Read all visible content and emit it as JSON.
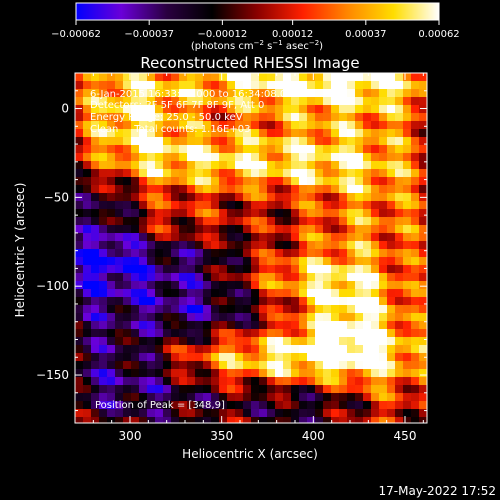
{
  "chart_data": {
    "type": "heatmap",
    "title": "Reconstructed RHESSI Image",
    "xlabel": "Heliocentric X (arcsec)",
    "ylabel": "Heliocentric Y (arcsec)",
    "xlim": [
      270,
      462
    ],
    "ylim": [
      -177,
      20
    ],
    "xticks": [
      300,
      350,
      400,
      450
    ],
    "xtick_labels": [
      "300",
      "350",
      "400",
      "450"
    ],
    "yticks": [
      0,
      -50,
      -100,
      -150
    ],
    "ytick_labels": [
      "0",
      "−50",
      "−100",
      "−150"
    ],
    "colorbar": {
      "range": [
        -0.00062,
        0.00062
      ],
      "tick_values": [
        -0.00062,
        -0.00037,
        -0.00012,
        0.00012,
        0.00037,
        0.00062
      ],
      "tick_labels": [
        "−0.00062",
        "−0.00037",
        "−0.00012",
        "0.00012",
        "0.00037",
        "0.00062"
      ],
      "units_text": "(photons cm",
      "units_exp1": "−2",
      "units_mid1": " s",
      "units_exp2": "−1",
      "units_mid2": " asec",
      "units_exp3": "−2",
      "units_end": ")",
      "colors": [
        "#0000ff",
        "#6a00d8",
        "#2a0040",
        "#000000",
        "#8b0000",
        "#ff2000",
        "#ff8800",
        "#ffdd00",
        "#ffffff"
      ]
    },
    "peak": {
      "x": 348,
      "y": 9
    },
    "blobs": [
      {
        "x": 395,
        "y": 15,
        "sx": 60,
        "sy": 12,
        "a": 0.00058
      },
      {
        "x": 300,
        "y": -5,
        "sx": 20,
        "sy": 20,
        "a": 0.00045
      },
      {
        "x": 350,
        "y": -30,
        "sx": 45,
        "sy": 14,
        "a": 0.0005
      },
      {
        "x": 425,
        "y": -40,
        "sx": 30,
        "sy": 35,
        "a": 0.0004
      },
      {
        "x": 340,
        "y": -65,
        "sx": 70,
        "sy": 10,
        "a": 0.00035
      },
      {
        "x": 420,
        "y": -115,
        "sx": 22,
        "sy": 20,
        "a": 0.00055
      },
      {
        "x": 380,
        "y": -95,
        "sx": 30,
        "sy": 10,
        "a": 0.0004
      },
      {
        "x": 345,
        "y": -140,
        "sx": 35,
        "sy": 10,
        "a": 0.00035
      },
      {
        "x": 410,
        "y": -140,
        "sx": 45,
        "sy": 12,
        "a": 0.00045
      },
      {
        "x": 300,
        "y": -110,
        "sx": 25,
        "sy": 20,
        "a": 0.0002
      },
      {
        "x": 440,
        "y": -165,
        "sx": 20,
        "sy": 12,
        "a": 0.0003
      },
      {
        "x": 285,
        "y": -70,
        "sx": 15,
        "sy": 25,
        "a": -0.00045
      },
      {
        "x": 320,
        "y": -100,
        "sx": 45,
        "sy": 25,
        "a": -0.00055
      },
      {
        "x": 300,
        "y": -150,
        "sx": 30,
        "sy": 20,
        "a": -0.0004
      },
      {
        "x": 390,
        "y": -60,
        "sx": 40,
        "sy": 12,
        "a": -0.0003
      },
      {
        "x": 410,
        "y": -165,
        "sx": 40,
        "sy": 10,
        "a": -0.0003
      }
    ]
  },
  "annotations": {
    "line1": "6-Jan-2015 16:33:20.000 to 16:34:08.000",
    "line2": "Detectors: 3F 5F 6F 7F 8F 9F, Att 0",
    "line3": "Energy Range: 25.0 - 50.0 keV",
    "line4": "Clean     Total counts: 1.16E+03",
    "peak_label": "Position of Peak = [348,9]"
  },
  "timestamp": "17-May-2022 17:52"
}
